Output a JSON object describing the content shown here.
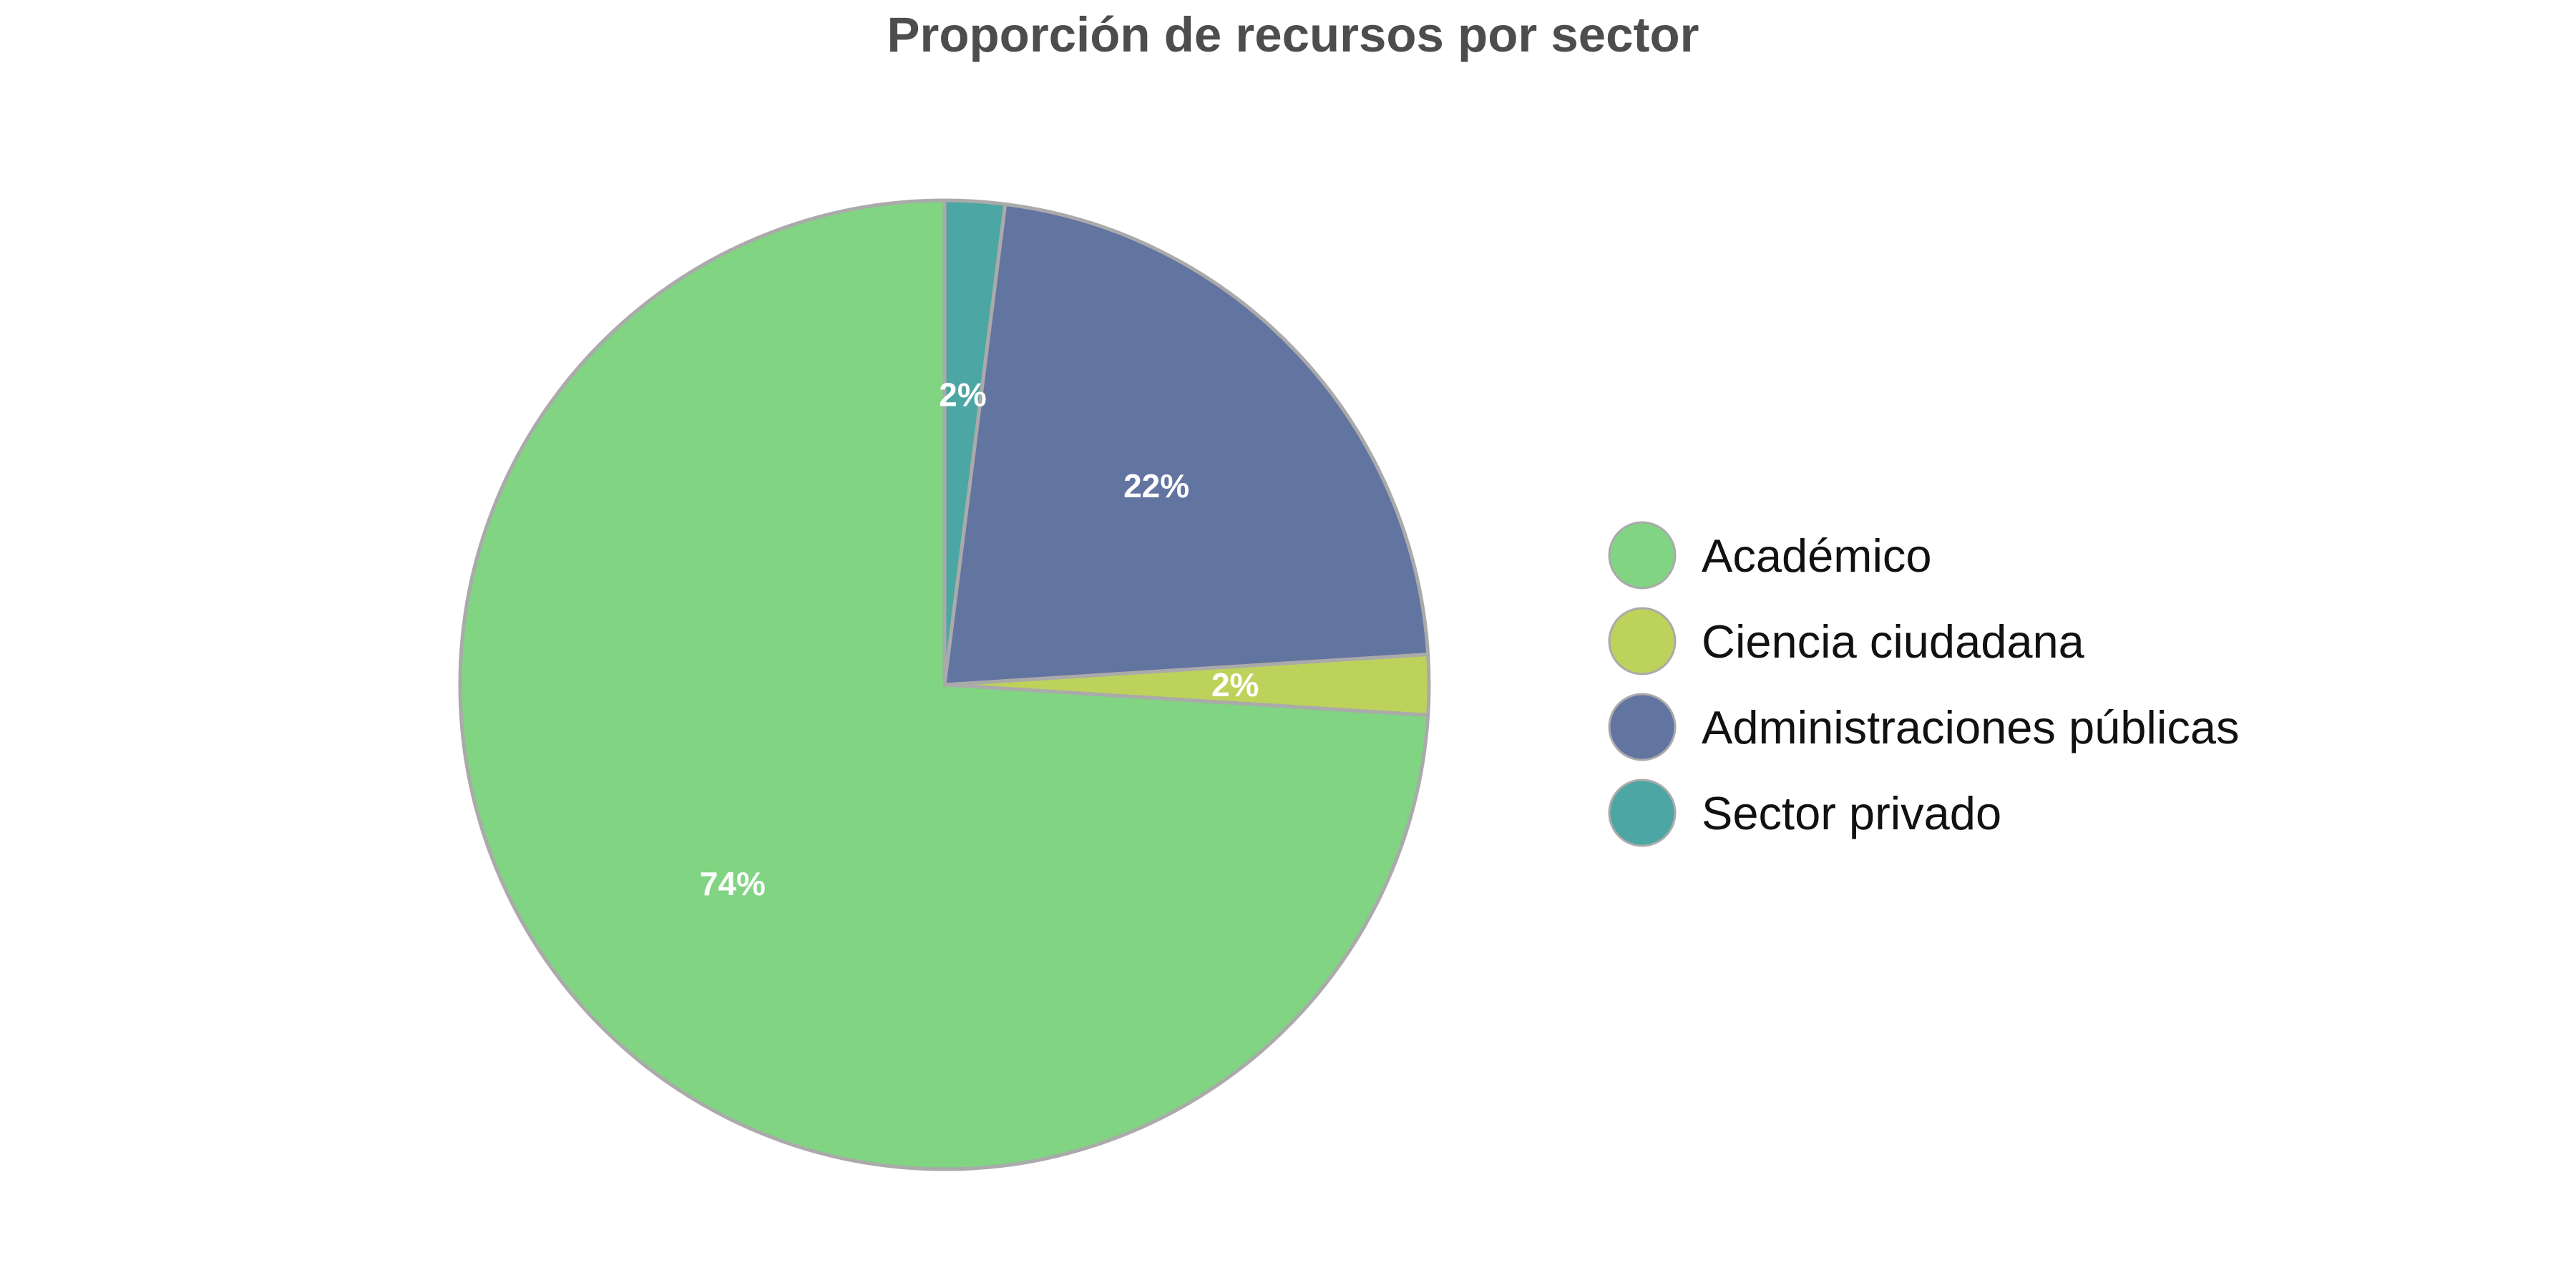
{
  "chart_data": {
    "type": "pie",
    "title": "Proporción de recursos por sector",
    "start_angle_deg": 90,
    "direction": "clockwise",
    "slices": [
      {
        "label": "Sector privado",
        "value": 2,
        "pct_label": "2%",
        "color": "#4ca6a3"
      },
      {
        "label": "Administraciones públicas",
        "value": 22,
        "pct_label": "22%",
        "color": "#6274a0"
      },
      {
        "label": "Ciencia ciudadana",
        "value": 2,
        "pct_label": "2%",
        "color": "#bdd25a"
      },
      {
        "label": "Académico",
        "value": 74,
        "pct_label": "74%",
        "color": "#80d482"
      }
    ],
    "legend": {
      "placement": "right",
      "entries": [
        {
          "label": "Académico",
          "color": "#80d482"
        },
        {
          "label": "Ciencia ciudadana",
          "color": "#bdd25a"
        },
        {
          "label": "Administraciones públicas",
          "color": "#6274a0"
        },
        {
          "label": "Sector privado",
          "color": "#4ca6a3"
        }
      ]
    },
    "slice_edge_color": "#aaaaaa"
  }
}
